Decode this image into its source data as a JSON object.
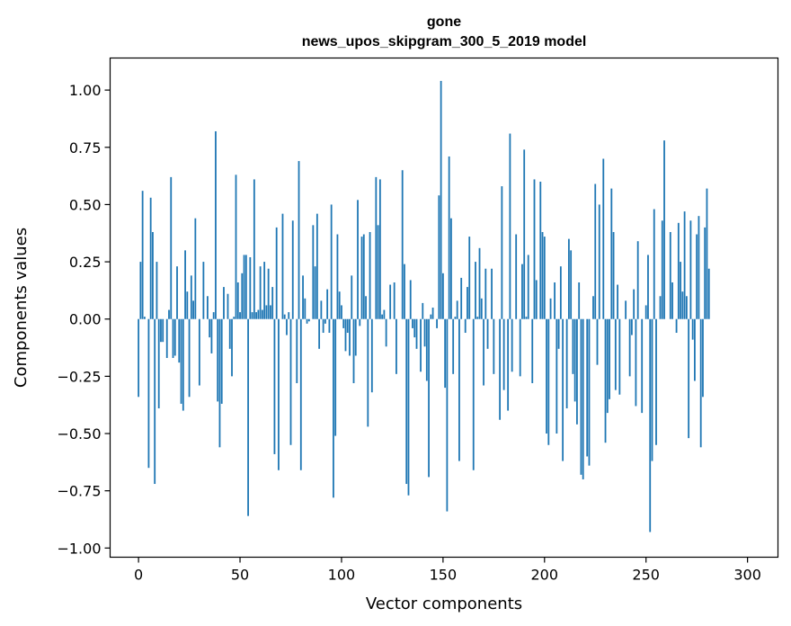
{
  "chart_data": {
    "type": "bar",
    "title": "gone",
    "subtitle": "news_upos_skipgram_300_5_2019 model",
    "xlabel": "Vector components",
    "ylabel": "Components values",
    "xlim": [
      -14,
      315
    ],
    "ylim": [
      -1.04,
      1.14
    ],
    "xticks": [
      0,
      50,
      100,
      150,
      200,
      250,
      300
    ],
    "xtick_labels": [
      "0",
      "50",
      "100",
      "150",
      "200",
      "250",
      "300"
    ],
    "yticks": [
      -1.0,
      -0.75,
      -0.5,
      -0.25,
      0.0,
      0.25,
      0.5,
      0.75,
      1.0
    ],
    "ytick_labels": [
      "−1.00",
      "−0.75",
      "−0.50",
      "−0.25",
      "0.00",
      "0.25",
      "0.50",
      "0.75",
      "1.00"
    ],
    "bar_color": "#1f77b4",
    "grid": false,
    "values": [
      -0.34,
      0.25,
      0.56,
      0.01,
      0.0,
      -0.65,
      0.53,
      0.38,
      -0.72,
      0.25,
      -0.39,
      -0.1,
      -0.1,
      0.0,
      -0.17,
      0.04,
      0.62,
      -0.17,
      -0.16,
      0.23,
      -0.19,
      -0.37,
      -0.4,
      0.3,
      0.12,
      -0.34,
      0.19,
      0.08,
      0.44,
      0.0,
      -0.29,
      0.0,
      0.25,
      0.0,
      0.1,
      -0.08,
      -0.15,
      0.03,
      0.82,
      -0.36,
      -0.56,
      -0.37,
      0.14,
      0.0,
      0.11,
      -0.13,
      -0.25,
      0.01,
      0.63,
      0.16,
      0.03,
      0.2,
      0.28,
      0.28,
      -0.86,
      0.27,
      0.03,
      0.61,
      0.03,
      0.04,
      0.23,
      0.04,
      0.25,
      0.06,
      0.22,
      0.06,
      0.14,
      -0.59,
      0.4,
      -0.66,
      0.0,
      0.46,
      0.02,
      -0.07,
      0.03,
      -0.55,
      0.43,
      0.0,
      -0.28,
      0.69,
      -0.66,
      0.19,
      0.09,
      -0.02,
      -0.01,
      0.0,
      0.41,
      0.23,
      0.46,
      -0.13,
      0.08,
      -0.06,
      -0.02,
      0.13,
      -0.06,
      0.5,
      -0.78,
      -0.51,
      0.37,
      0.12,
      0.06,
      -0.04,
      -0.14,
      -0.06,
      -0.16,
      0.19,
      -0.28,
      -0.16,
      0.52,
      -0.03,
      0.36,
      0.37,
      0.1,
      -0.47,
      0.38,
      -0.32,
      0.0,
      0.62,
      0.41,
      0.61,
      0.02,
      0.04,
      -0.12,
      0.0,
      0.15,
      0.0,
      0.16,
      -0.24,
      0.0,
      0.0,
      0.65,
      0.24,
      -0.72,
      -0.77,
      0.17,
      -0.04,
      -0.08,
      -0.13,
      0.0,
      -0.23,
      0.07,
      -0.12,
      -0.27,
      -0.69,
      0.02,
      0.05,
      0.0,
      -0.04,
      0.54,
      1.04,
      0.2,
      -0.3,
      -0.84,
      0.71,
      0.44,
      -0.24,
      0.01,
      0.08,
      -0.62,
      0.18,
      0.0,
      -0.06,
      0.14,
      0.36,
      0.0,
      -0.66,
      0.25,
      0.01,
      0.31,
      0.09,
      -0.29,
      0.22,
      -0.13,
      0.0,
      0.22,
      -0.24,
      0.0,
      0.0,
      -0.44,
      0.58,
      -0.31,
      0.0,
      -0.4,
      0.81,
      -0.23,
      0.0,
      0.37,
      0.0,
      -0.25,
      0.24,
      0.74,
      0.01,
      0.28,
      0.0,
      -0.28,
      0.61,
      0.17,
      0.0,
      0.6,
      0.38,
      0.36,
      -0.5,
      -0.55,
      0.09,
      0.0,
      0.16,
      -0.5,
      -0.13,
      0.23,
      -0.62,
      0.0,
      -0.39,
      0.35,
      0.3,
      -0.24,
      -0.36,
      -0.46,
      0.16,
      -0.68,
      -0.7,
      0.0,
      -0.6,
      -0.64,
      0.0,
      0.1,
      0.59,
      -0.2,
      0.5,
      0.0,
      0.7,
      -0.54,
      -0.41,
      -0.35,
      0.57,
      0.38,
      -0.31,
      0.15,
      -0.33,
      0.0,
      0.0,
      0.08,
      0.0,
      -0.25,
      -0.07,
      0.13,
      -0.38,
      0.34,
      0.0,
      -0.41,
      0.0,
      0.06,
      0.28,
      -0.93,
      -0.62,
      0.48,
      -0.55,
      0.0,
      0.1,
      0.43,
      0.78,
      0.0,
      0.0,
      0.38,
      0.16,
      0.0,
      -0.06,
      0.42,
      0.25,
      0.12,
      0.47,
      0.1,
      -0.52,
      0.43,
      -0.09,
      -0.27,
      0.37,
      0.45,
      -0.56,
      -0.34,
      0.4,
      0.57,
      0.22
    ]
  }
}
